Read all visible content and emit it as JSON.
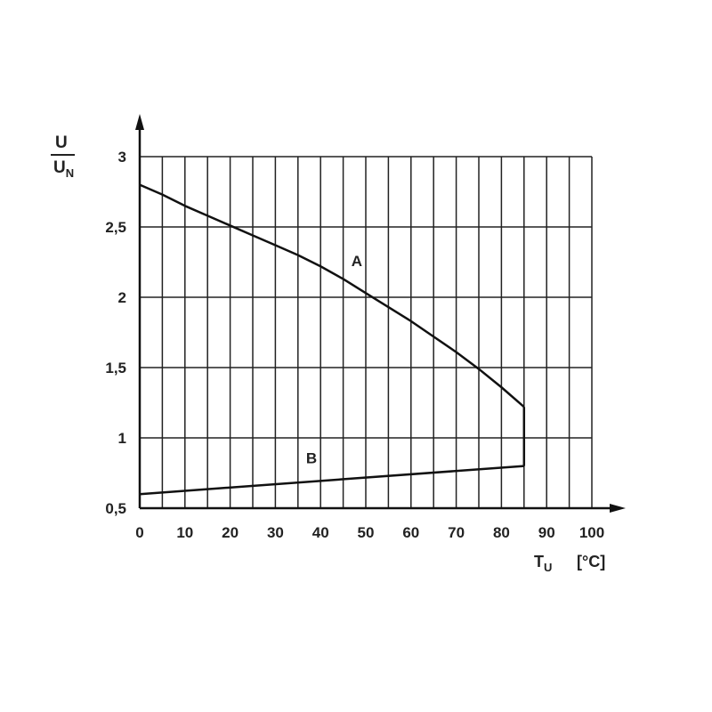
{
  "chart_data": {
    "type": "line",
    "title": "",
    "ylabel": {
      "numerator": "U",
      "denominator": "U",
      "denominator_subscript": "N"
    },
    "xlabel": {
      "symbol": "T",
      "subscript": "U",
      "unit": "[°C]"
    },
    "xlim": [
      0,
      100
    ],
    "ylim": [
      0.5,
      3
    ],
    "x_ticks": [
      0,
      10,
      20,
      30,
      40,
      50,
      60,
      70,
      80,
      90,
      100
    ],
    "x_tick_labels": [
      "0",
      "10",
      "20",
      "30",
      "40",
      "50",
      "60",
      "70",
      "80",
      "90",
      "100"
    ],
    "y_ticks": [
      0.5,
      1,
      1.5,
      2,
      2.5,
      3
    ],
    "y_tick_labels": [
      "0,5",
      "1",
      "1,5",
      "2",
      "2,5",
      "3"
    ],
    "grid": true,
    "x_grid_step": 5,
    "y_grid_step": 0.5,
    "series": [
      {
        "name": "A",
        "x": [
          0,
          5,
          10,
          15,
          20,
          25,
          30,
          35,
          40,
          45,
          50,
          55,
          60,
          65,
          70,
          75,
          80,
          85
        ],
        "y": [
          2.8,
          2.73,
          2.65,
          2.58,
          2.51,
          2.44,
          2.37,
          2.3,
          2.22,
          2.13,
          2.03,
          1.93,
          1.83,
          1.72,
          1.61,
          1.49,
          1.36,
          1.22
        ]
      },
      {
        "name": "B",
        "x": [
          0,
          85
        ],
        "y": [
          0.6,
          0.8
        ]
      }
    ],
    "connector": {
      "x": 85,
      "y_from": 0.8,
      "y_to": 1.22
    },
    "series_labels": [
      {
        "text": "A",
        "x": 48,
        "y": 2.22
      },
      {
        "text": "B",
        "x": 38,
        "y": 0.82
      }
    ]
  }
}
